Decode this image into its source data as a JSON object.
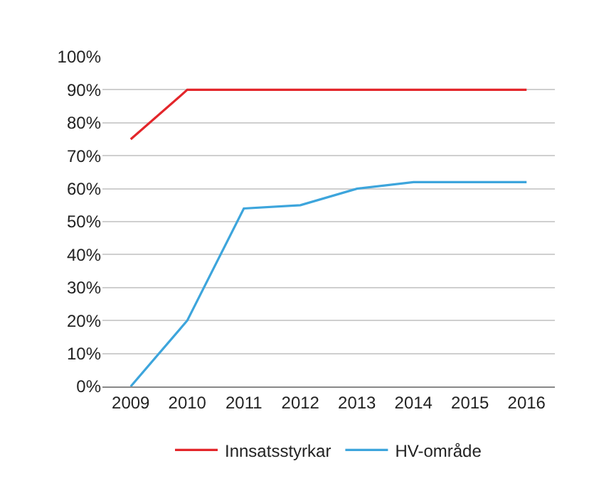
{
  "chart_data": {
    "type": "line",
    "categories": [
      "2009",
      "2010",
      "2011",
      "2012",
      "2013",
      "2014",
      "2015",
      "2016"
    ],
    "series": [
      {
        "name": "Innsatsstyrkar",
        "color": "#e3262b",
        "values": [
          75,
          90,
          90,
          90,
          90,
          90,
          90,
          90
        ]
      },
      {
        "name": "HV-område",
        "color": "#3da5dc",
        "values": [
          0,
          20,
          54,
          55,
          60,
          62,
          62,
          62
        ]
      }
    ],
    "ylim": [
      0,
      100
    ],
    "yticks": [
      {
        "value": 0,
        "label": "0%"
      },
      {
        "value": 10,
        "label": "10%"
      },
      {
        "value": 20,
        "label": "20%"
      },
      {
        "value": 30,
        "label": "30%"
      },
      {
        "value": 40,
        "label": "40%"
      },
      {
        "value": 50,
        "label": "50%"
      },
      {
        "value": 60,
        "label": "60%"
      },
      {
        "value": 70,
        "label": "70%"
      },
      {
        "value": 80,
        "label": "80%"
      },
      {
        "value": 90,
        "label": "90%"
      },
      {
        "value": 100,
        "label": "100%"
      }
    ],
    "grid": "y",
    "legend": "bottom",
    "marker": "none",
    "line_style": "solid"
  }
}
